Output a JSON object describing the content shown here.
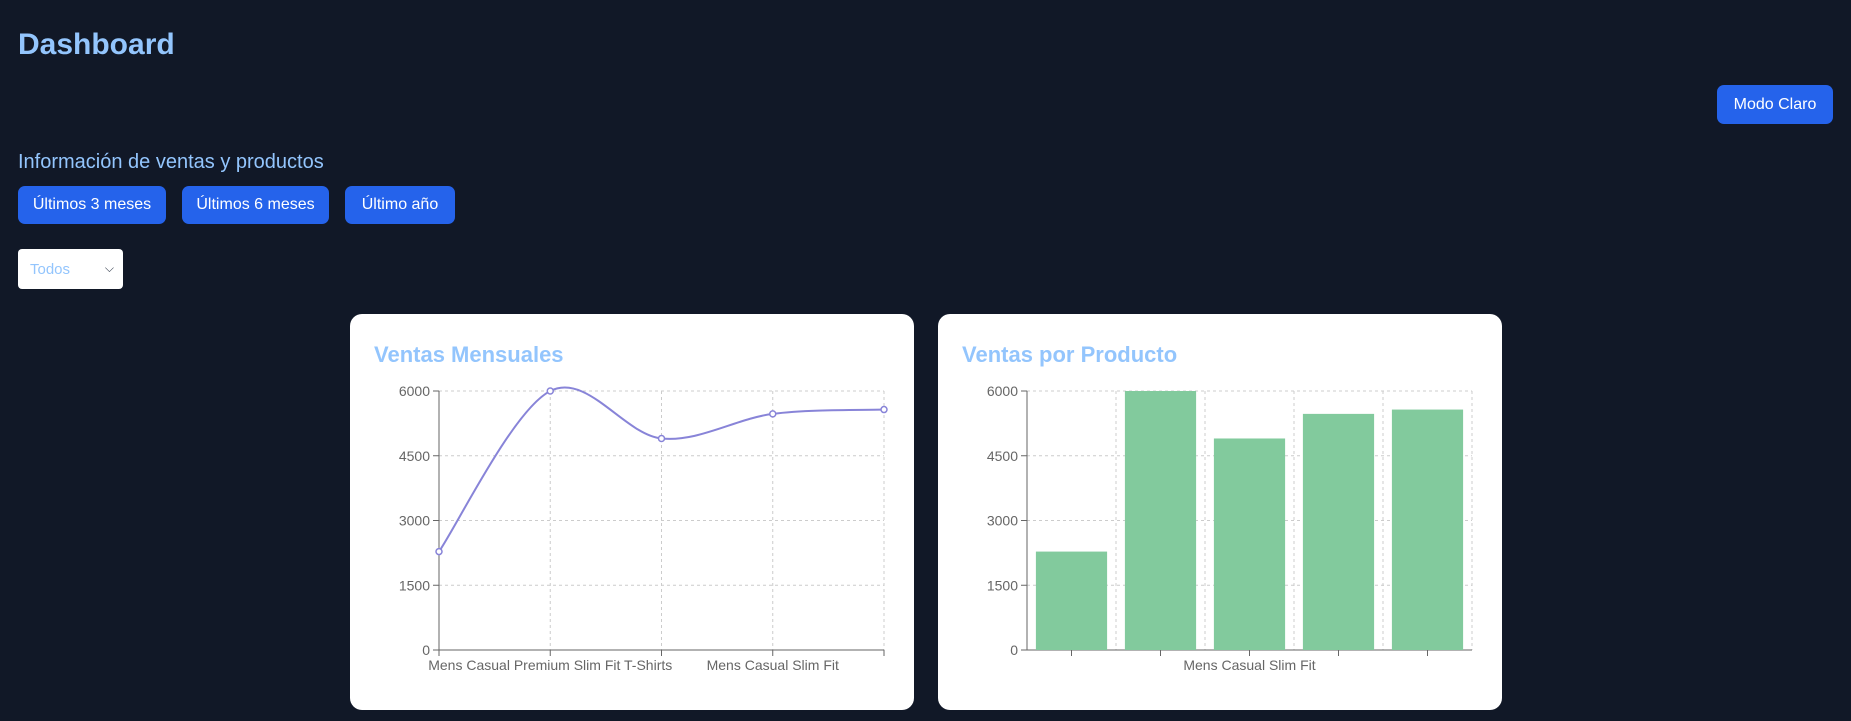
{
  "header": {
    "title": "Dashboard",
    "theme_button": "Modo Claro"
  },
  "section": {
    "subtitle": "Información de ventas y productos"
  },
  "filters": [
    {
      "label": "Últimos 3 meses"
    },
    {
      "label": "Últimos 6 meses"
    },
    {
      "label": "Último año"
    }
  ],
  "product_select": {
    "value": "Todos",
    "chevron_icon": "chevron-down-icon"
  },
  "colors": {
    "background": "#111827",
    "accent_text": "#93c5fd",
    "button": "#2563eb",
    "line": "#8884d8",
    "bar": "#82ca9d"
  },
  "chart_data": [
    {
      "type": "line",
      "title": "Ventas Mensuales",
      "categories": [
        "",
        "Mens Casual Premium Slim Fit T-Shirts",
        "",
        "Mens Casual Slim Fit",
        ""
      ],
      "values": [
        2280,
        6000,
        4900,
        5470,
        5570
      ],
      "yticks": [
        "0",
        "1500",
        "3000",
        "4500",
        "6000"
      ],
      "ylim": [
        0,
        6000
      ],
      "grid": true
    },
    {
      "type": "bar",
      "title": "Ventas por Producto",
      "categories": [
        "",
        "",
        "Mens Casual Slim Fit",
        "",
        ""
      ],
      "values": [
        2280,
        6000,
        4900,
        5470,
        5570
      ],
      "yticks": [
        "0",
        "1500",
        "3000",
        "4500",
        "6000"
      ],
      "ylim": [
        0,
        6000
      ],
      "grid": true
    }
  ]
}
